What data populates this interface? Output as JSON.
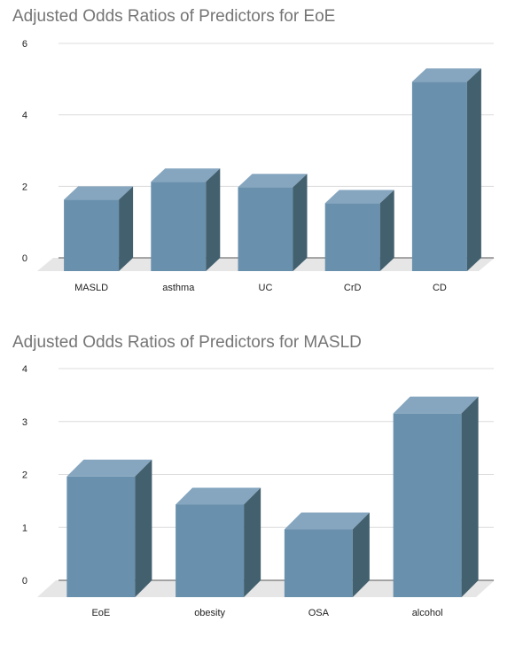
{
  "chart_data": [
    {
      "type": "bar",
      "title": "Adjusted Odds Ratios of Predictors for EoE",
      "categories": [
        "MASLD",
        "asthma",
        "UC",
        "CrD",
        "CD"
      ],
      "values": [
        2.0,
        2.5,
        2.35,
        1.9,
        5.3
      ],
      "ylim": [
        0,
        6
      ],
      "yticks": [
        0,
        2,
        4,
        6
      ],
      "grid": true,
      "legend": "none",
      "style": "3d",
      "colors": {
        "front": "#6990ad",
        "top": "#86a6bf",
        "side": "#43606f"
      }
    },
    {
      "type": "bar",
      "title": "Adjusted Odds Ratios of Predictors for MASLD",
      "categories": [
        "EoE",
        "obesity",
        "OSA",
        "alcohol"
      ],
      "values": [
        2.28,
        1.75,
        1.28,
        3.47
      ],
      "ylim": [
        0,
        4
      ],
      "yticks": [
        0,
        1,
        2,
        3,
        4
      ],
      "grid": true,
      "legend": "none",
      "style": "3d",
      "colors": {
        "front": "#6990ad",
        "top": "#86a6bf",
        "side": "#43606f"
      }
    }
  ]
}
